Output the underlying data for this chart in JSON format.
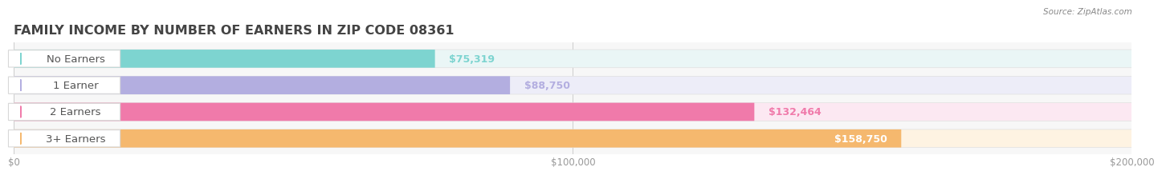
{
  "title": "FAMILY INCOME BY NUMBER OF EARNERS IN ZIP CODE 08361",
  "source": "Source: ZipAtlas.com",
  "categories": [
    "No Earners",
    "1 Earner",
    "2 Earners",
    "3+ Earners"
  ],
  "values": [
    75319,
    88750,
    132464,
    158750
  ],
  "bar_colors": [
    "#7dd4d0",
    "#b3aee0",
    "#f07aaa",
    "#f5b86e"
  ],
  "bar_bg_colors": [
    "#eaf6f6",
    "#ededf8",
    "#fce8f2",
    "#fef3e2"
  ],
  "value_labels": [
    "$75,319",
    "$88,750",
    "$132,464",
    "$158,750"
  ],
  "value_text_colors": [
    "#7dd4d0",
    "#b3aee0",
    "#ffffff",
    "#ffffff"
  ],
  "xlim": [
    0,
    200000
  ],
  "xticks": [
    0,
    100000,
    200000
  ],
  "xtick_labels": [
    "$0",
    "$100,000",
    "$200,000"
  ],
  "title_fontsize": 11.5,
  "label_fontsize": 9.5,
  "value_fontsize": 9,
  "bg_color": "#ffffff",
  "plot_bg_color": "#f7f7f7"
}
